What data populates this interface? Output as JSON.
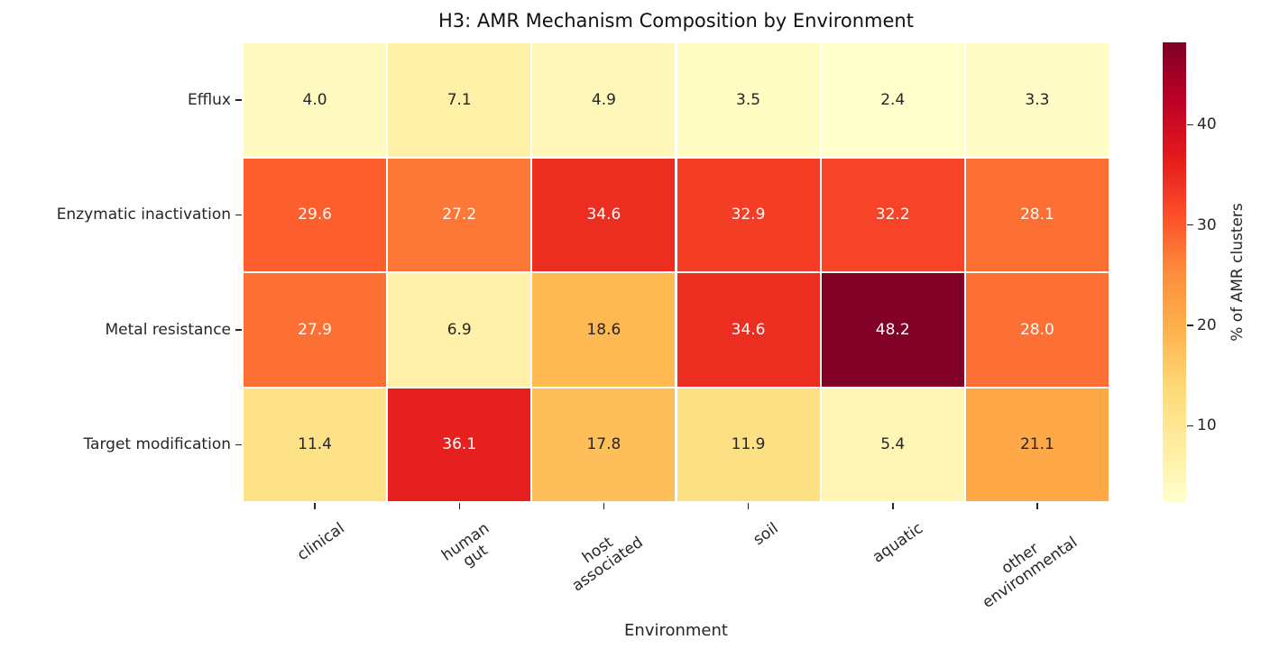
{
  "title": "H3: AMR Mechanism Composition by Environment",
  "chart_data": {
    "type": "heatmap",
    "title": "H3: AMR Mechanism Composition by Environment",
    "xlabel": "Environment",
    "rows": [
      "Efflux",
      "Enzymatic inactivation",
      "Metal resistance",
      "Target modification"
    ],
    "columns": [
      "clinical",
      "human\ngut",
      "host\nassociated",
      "soil",
      "aquatic",
      "other\nenvironmental"
    ],
    "values": [
      [
        4.0,
        7.1,
        4.9,
        3.5,
        2.4,
        3.3
      ],
      [
        29.6,
        27.2,
        34.6,
        32.9,
        32.2,
        28.1
      ],
      [
        27.9,
        6.9,
        18.6,
        34.6,
        48.2,
        28.0
      ],
      [
        11.4,
        36.1,
        17.8,
        11.9,
        5.4,
        21.1
      ]
    ],
    "annotation_decimals": 1,
    "colormap": "YlOrRd",
    "vmin": 2.4,
    "vmax": 48.2,
    "grid_line_color": "#ffffff",
    "annotation_dark_color": "#262626",
    "annotation_light_color": "#ffffff",
    "colorbar": {
      "label": "% of AMR clusters",
      "ticks": [
        10,
        20,
        30,
        40
      ],
      "position": "right"
    },
    "legend_position": "none",
    "x_tick_rotation_deg": 35
  }
}
